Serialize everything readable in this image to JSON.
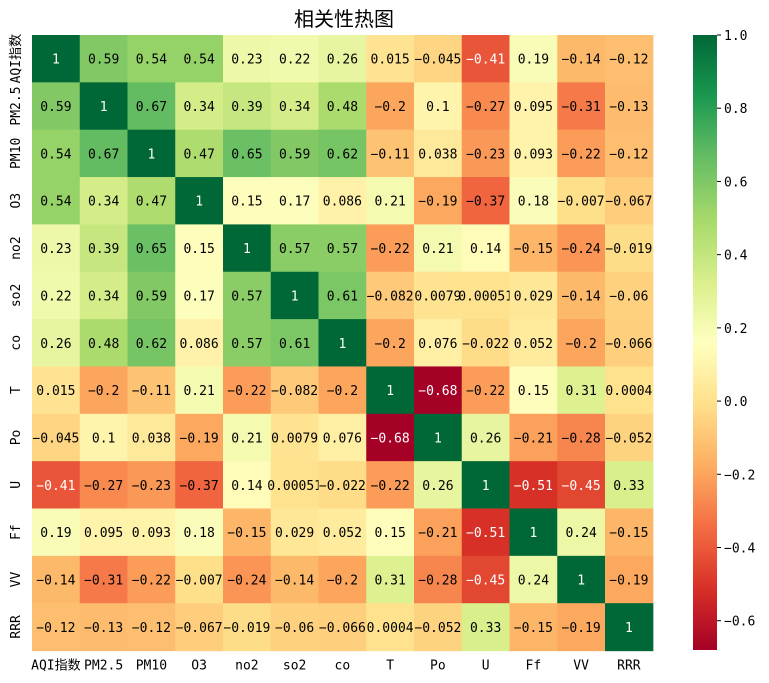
{
  "chart_data": {
    "type": "heatmap",
    "title": "相关性热图",
    "labels": [
      "AQI指数",
      "PM2.5",
      "PM10",
      "O3",
      "no2",
      "so2",
      "co",
      "T",
      "Po",
      "U",
      "Ff",
      "VV",
      "RRR"
    ],
    "values": [
      [
        1,
        0.59,
        0.54,
        0.54,
        0.23,
        0.22,
        0.26,
        0.015,
        -0.045,
        -0.41,
        0.19,
        -0.14,
        -0.12
      ],
      [
        0.59,
        1,
        0.67,
        0.34,
        0.39,
        0.34,
        0.48,
        -0.2,
        0.1,
        -0.27,
        0.095,
        -0.31,
        -0.13
      ],
      [
        0.54,
        0.67,
        1,
        0.47,
        0.65,
        0.59,
        0.62,
        -0.11,
        0.038,
        -0.23,
        0.093,
        -0.22,
        -0.12
      ],
      [
        0.54,
        0.34,
        0.47,
        1,
        0.15,
        0.17,
        0.086,
        0.21,
        -0.19,
        -0.37,
        0.18,
        -0.007,
        -0.067
      ],
      [
        0.23,
        0.39,
        0.65,
        0.15,
        1,
        0.57,
        0.57,
        -0.22,
        0.21,
        0.14,
        -0.15,
        -0.24,
        -0.019
      ],
      [
        0.22,
        0.34,
        0.59,
        0.17,
        0.57,
        1,
        0.61,
        -0.082,
        0.0079,
        0.00051,
        0.029,
        -0.14,
        -0.06
      ],
      [
        0.26,
        0.48,
        0.62,
        0.086,
        0.57,
        0.61,
        1,
        -0.2,
        0.076,
        -0.022,
        0.052,
        -0.2,
        -0.066
      ],
      [
        0.015,
        -0.2,
        -0.11,
        0.21,
        -0.22,
        -0.082,
        -0.2,
        1,
        -0.68,
        -0.22,
        0.15,
        0.31,
        0.0004
      ],
      [
        -0.045,
        0.1,
        0.038,
        -0.19,
        0.21,
        0.0079,
        0.076,
        -0.68,
        1,
        0.26,
        -0.21,
        -0.28,
        -0.052
      ],
      [
        -0.41,
        -0.27,
        -0.23,
        -0.37,
        0.14,
        0.00051,
        -0.022,
        -0.22,
        0.26,
        1,
        -0.51,
        -0.45,
        0.33
      ],
      [
        0.19,
        0.095,
        0.093,
        0.18,
        -0.15,
        0.029,
        0.052,
        0.15,
        -0.21,
        -0.51,
        1,
        0.24,
        -0.15
      ],
      [
        -0.14,
        -0.31,
        -0.22,
        -0.007,
        -0.24,
        -0.14,
        -0.2,
        0.31,
        -0.28,
        -0.45,
        0.24,
        1,
        -0.19
      ],
      [
        -0.12,
        -0.13,
        -0.12,
        -0.067,
        -0.019,
        -0.06,
        -0.066,
        0.0004,
        -0.052,
        0.33,
        -0.15,
        -0.19,
        1
      ]
    ],
    "colormap": "RdYlGn",
    "vmin": -0.68,
    "vmax": 1,
    "colorbar_ticks": [
      1.0,
      0.8,
      0.6,
      0.4,
      0.2,
      0.0,
      -0.2,
      -0.4,
      -0.6
    ],
    "colorbar_tick_labels": [
      "1.0",
      "0.8",
      "0.6",
      "0.4",
      "0.2",
      "0.0",
      "−0.2",
      "−0.4",
      "−0.6"
    ],
    "annotations": true
  }
}
